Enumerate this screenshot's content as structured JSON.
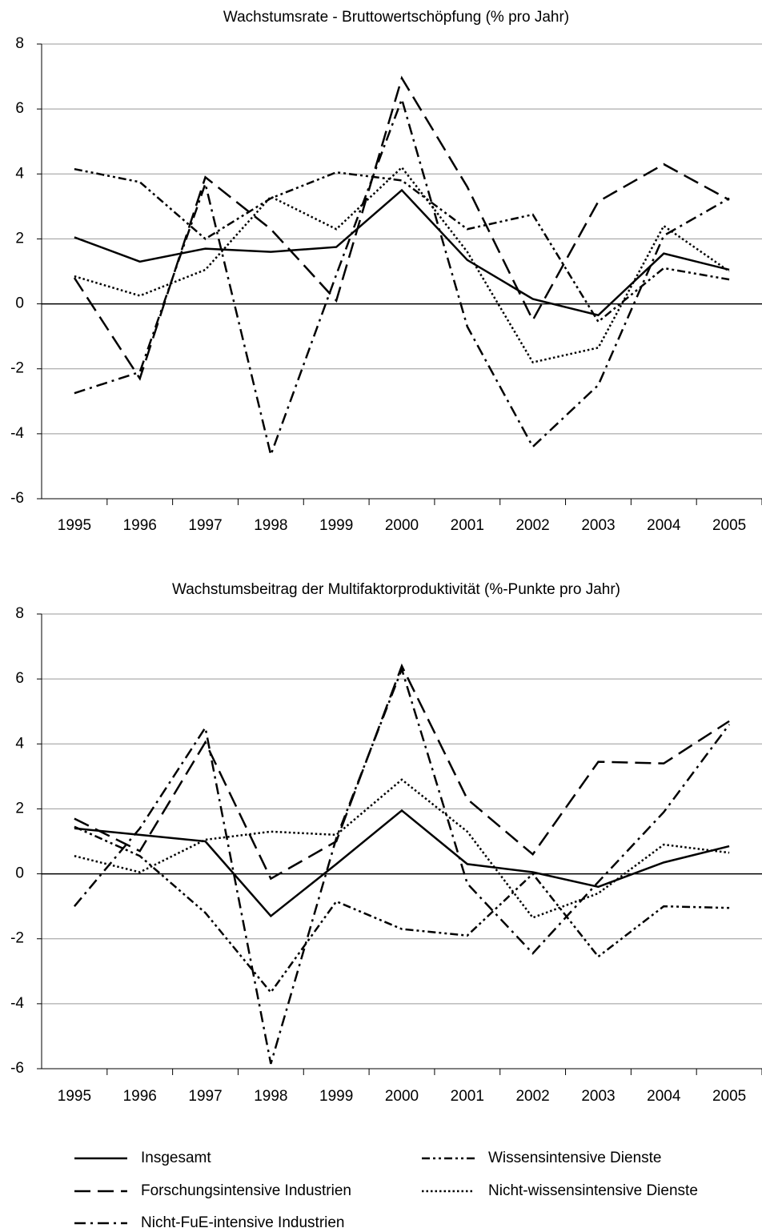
{
  "chart_data": [
    {
      "type": "line",
      "title": "Wachstumsrate - Bruttowertschöpfung (% pro Jahr)",
      "categories": [
        "1995",
        "1996",
        "1997",
        "1998",
        "1999",
        "2000",
        "2001",
        "2002",
        "2003",
        "2004",
        "2005"
      ],
      "ylim": [
        -6,
        8
      ],
      "yticks": [
        -6,
        -4,
        -2,
        0,
        2,
        4,
        6,
        8
      ],
      "grid": true,
      "series": [
        {
          "name": "Insgesamt",
          "color": "#000000",
          "values": [
            2.05,
            1.3,
            1.7,
            1.6,
            1.75,
            3.5,
            1.35,
            0.15,
            -0.35,
            1.55,
            1.05
          ]
        },
        {
          "name": "Forschungsintensive Industrien",
          "color": "#000000",
          "values": [
            0.8,
            -2.3,
            3.9,
            2.3,
            0.1,
            6.95,
            3.6,
            -0.5,
            3.15,
            4.3,
            3.2
          ]
        },
        {
          "name": "Nicht-FuE-intensive Industrien",
          "color": "#000000",
          "values": [
            -2.75,
            -2.1,
            3.7,
            -4.65,
            0.9,
            6.3,
            -0.7,
            -4.4,
            -2.5,
            2.1,
            3.25
          ]
        },
        {
          "name": "Wissensintensive Dienste",
          "color": "#000000",
          "values": [
            4.15,
            3.75,
            2.0,
            3.25,
            4.05,
            3.8,
            2.3,
            2.75,
            -0.55,
            1.1,
            0.75
          ]
        },
        {
          "name": "Nicht-wissensintensive Dienste",
          "color": "#000000",
          "values": [
            0.85,
            0.25,
            1.05,
            3.3,
            2.3,
            4.2,
            1.6,
            -1.8,
            -1.35,
            2.4,
            1.0
          ]
        }
      ]
    },
    {
      "type": "line",
      "title": "Wachstumsbeitrag der Multifaktorproduktivität (%-Punkte pro Jahr)",
      "categories": [
        "1995",
        "1996",
        "1997",
        "1998",
        "1999",
        "2000",
        "2001",
        "2002",
        "2003",
        "2004",
        "2005"
      ],
      "ylim": [
        -6,
        8
      ],
      "yticks": [
        -6,
        -4,
        -2,
        0,
        2,
        4,
        6,
        8
      ],
      "grid": true,
      "series": [
        {
          "color": "#000000",
          "values": [
            1.4,
            1.2,
            1.0,
            -1.3,
            0.3,
            1.95,
            0.3,
            0.05,
            -0.4,
            0.35,
            0.85
          ]
        },
        {
          "color": "#000000",
          "values": [
            1.7,
            0.7,
            4.05,
            -0.15,
            1.0,
            6.4,
            2.3,
            0.6,
            3.45,
            3.4,
            4.7
          ]
        },
        {
          "color": "#000000",
          "values": [
            -1.0,
            1.4,
            4.5,
            -5.85,
            1.1,
            6.3,
            -0.3,
            -2.45,
            -0.25,
            1.9,
            4.6
          ]
        },
        {
          "color": "#000000",
          "values": [
            1.45,
            0.55,
            -1.2,
            -3.65,
            -0.85,
            -1.7,
            -1.9,
            0.0,
            -2.55,
            -1.0,
            -1.05
          ]
        },
        {
          "color": "#000000",
          "values": [
            0.55,
            0.05,
            1.05,
            1.3,
            1.2,
            2.9,
            1.3,
            -1.35,
            -0.6,
            0.9,
            0.65
          ]
        }
      ]
    }
  ]
}
